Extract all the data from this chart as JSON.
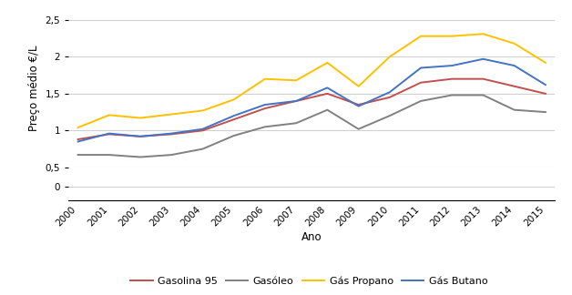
{
  "years": [
    2000,
    2001,
    2002,
    2003,
    2004,
    2005,
    2006,
    2007,
    2008,
    2009,
    2010,
    2011,
    2012,
    2013,
    2014,
    2015
  ],
  "gasolina95": [
    0.88,
    0.95,
    0.92,
    0.95,
    1.0,
    1.15,
    1.3,
    1.4,
    1.5,
    1.35,
    1.45,
    1.65,
    1.7,
    1.7,
    1.6,
    1.5
  ],
  "gasoleo": [
    0.67,
    0.67,
    0.64,
    0.67,
    0.75,
    0.93,
    1.05,
    1.1,
    1.28,
    1.02,
    1.2,
    1.4,
    1.48,
    1.48,
    1.28,
    1.25
  ],
  "propano": [
    1.04,
    1.21,
    1.17,
    1.22,
    1.27,
    1.42,
    1.7,
    1.68,
    1.92,
    1.6,
    2.0,
    2.28,
    2.28,
    2.31,
    2.18,
    1.92
  ],
  "butano": [
    0.85,
    0.96,
    0.92,
    0.96,
    1.02,
    1.2,
    1.35,
    1.4,
    1.58,
    1.33,
    1.52,
    1.85,
    1.88,
    1.97,
    1.88,
    1.62
  ],
  "colors": {
    "gasolina95": "#c0504d",
    "gasoleo": "#808080",
    "propano": "#ffc000",
    "butano": "#4472c4"
  },
  "ylabel": "Preço médio €/L",
  "xlabel": "Ano",
  "upper_yticks": [
    0.5,
    1.0,
    1.5,
    2.0,
    2.5
  ],
  "upper_ytick_labels": [
    "0,5",
    "1",
    "1,5",
    "2",
    "2,5"
  ],
  "upper_ylim": [
    0.5,
    2.65
  ],
  "lower_yticks": [
    0
  ],
  "lower_ytick_labels": [
    "0"
  ],
  "lower_ylim": [
    -0.15,
    0.15
  ],
  "legend_labels": [
    "Gasolina 95",
    "Gasóleo",
    "Gás Propano",
    "Gás Butano"
  ],
  "grid_color": "#d0d0d0",
  "grid_linewidth": 0.8,
  "line_linewidth": 1.4,
  "tick_fontsize": 7.5,
  "label_fontsize": 8.5,
  "legend_fontsize": 8
}
